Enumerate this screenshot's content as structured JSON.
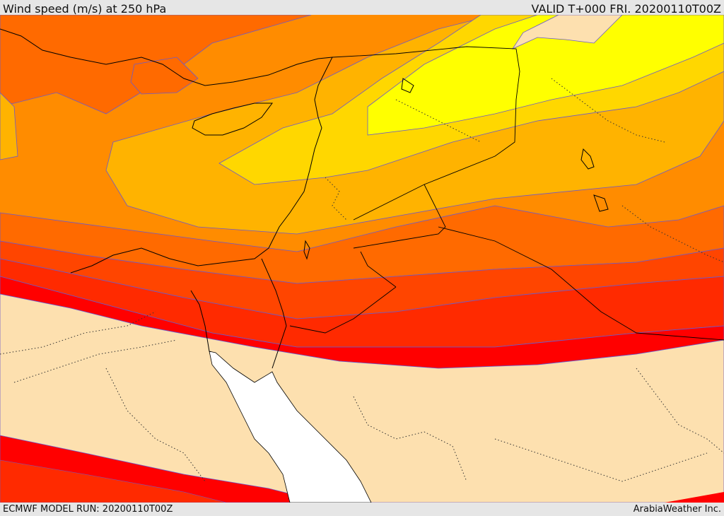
{
  "header": {
    "title": "Wind speed (m/s) at 250 hPa",
    "valid": "VALID T+000 FRI. 20200110T00Z"
  },
  "footer": {
    "model_run": "ECMWF MODEL RUN: 20200110T00Z",
    "credit": "ArabiaWeather Inc."
  },
  "map": {
    "fill_colors": {
      "calm": "#fde0af",
      "yellow": "#ffff00",
      "gold": "#ffd700",
      "amber": "#ffb300",
      "orange": "#ff8c00",
      "dark_orange": "#ff6a00",
      "red_orange": "#ff4500",
      "orange_red": "#ff2a00",
      "red": "#ff0000",
      "sea_gap": "#ffffff"
    },
    "contour_color": "#6a5acd"
  }
}
